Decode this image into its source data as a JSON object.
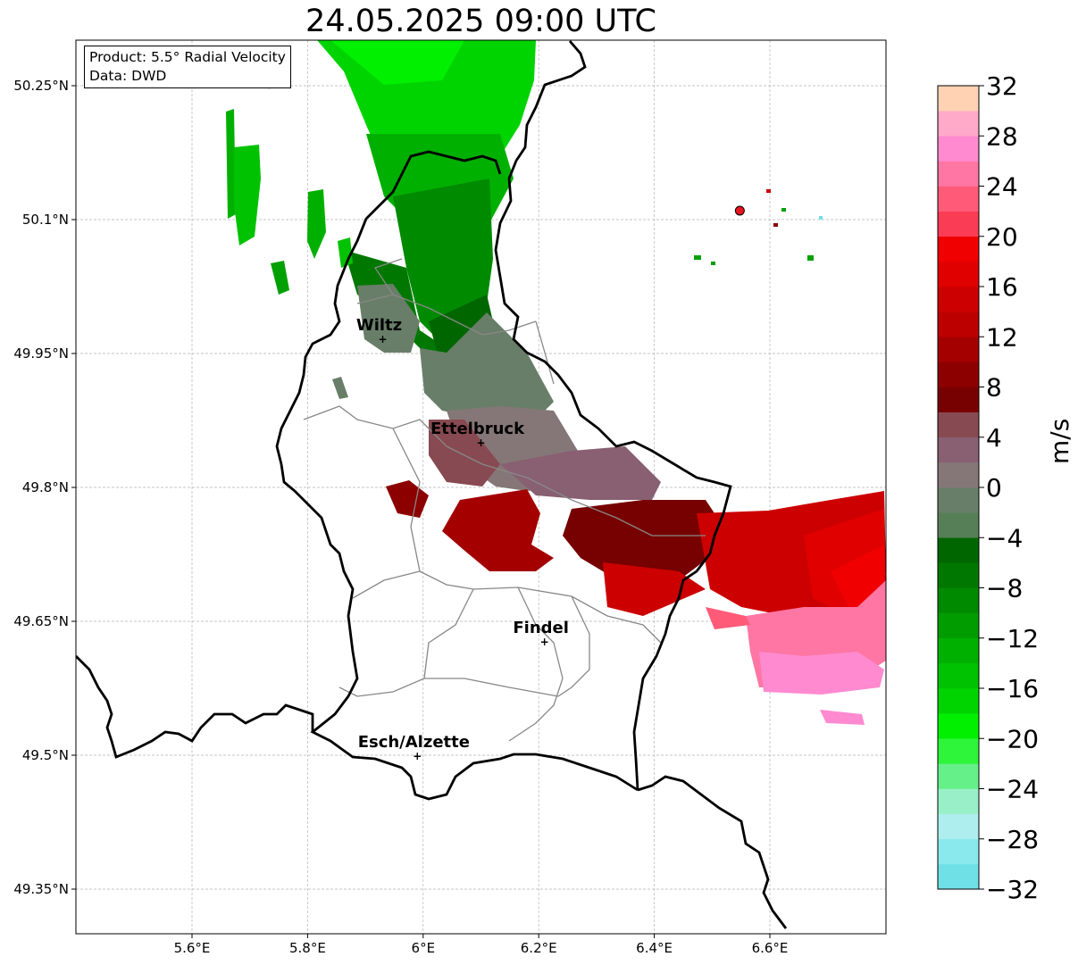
{
  "title": "24.05.2025 09:00 UTC",
  "info": {
    "product": "Product: 5.5° Radial Velocity",
    "data": "Data: DWD"
  },
  "map": {
    "lon_range": [
      5.4,
      6.8
    ],
    "lat_range": [
      49.3,
      50.3
    ],
    "x_ticks": [
      {
        "value": 5.6,
        "label": "5.6°E"
      },
      {
        "value": 5.8,
        "label": "5.8°E"
      },
      {
        "value": 6.0,
        "label": "6°E"
      },
      {
        "value": 6.2,
        "label": "6.2°E"
      },
      {
        "value": 6.4,
        "label": "6.4°E"
      },
      {
        "value": 6.6,
        "label": "6.6°E"
      }
    ],
    "y_ticks": [
      {
        "value": 50.25,
        "label": "50.25°N"
      },
      {
        "value": 50.1,
        "label": "50.1°N"
      },
      {
        "value": 49.95,
        "label": "49.95°N"
      },
      {
        "value": 49.8,
        "label": "49.8°N"
      },
      {
        "value": 49.65,
        "label": "49.65°N"
      },
      {
        "value": 49.5,
        "label": "49.5°N"
      },
      {
        "value": 49.35,
        "label": "49.35°N"
      }
    ],
    "cities": [
      {
        "name": "Wiltz",
        "lon": 5.93,
        "lat": 49.966
      },
      {
        "name": "Ettelbruck",
        "lon": 6.1,
        "lat": 49.85
      },
      {
        "name": "Findel",
        "lon": 6.21,
        "lat": 49.627
      },
      {
        "name": "Esch/Alzette",
        "lon": 5.99,
        "lat": 49.499
      }
    ],
    "radar_site": {
      "lon": 6.548,
      "lat": 50.11,
      "color": "#e8141e"
    }
  },
  "colorbar": {
    "unit": "m/s",
    "min": -32,
    "max": 32,
    "ticks": [
      {
        "value": 32,
        "label": "32"
      },
      {
        "value": 28,
        "label": "28"
      },
      {
        "value": 24,
        "label": "24"
      },
      {
        "value": 20,
        "label": "20"
      },
      {
        "value": 16,
        "label": "16"
      },
      {
        "value": 12,
        "label": "12"
      },
      {
        "value": 8,
        "label": "8"
      },
      {
        "value": 4,
        "label": "4"
      },
      {
        "value": 0,
        "label": "0"
      },
      {
        "value": -4,
        "label": "−4"
      },
      {
        "value": -8,
        "label": "−8"
      },
      {
        "value": -12,
        "label": "−12"
      },
      {
        "value": -16,
        "label": "−16"
      },
      {
        "value": -20,
        "label": "−20"
      },
      {
        "value": -24,
        "label": "−24"
      },
      {
        "value": -28,
        "label": "−28"
      },
      {
        "value": -32,
        "label": "−32"
      }
    ],
    "colors": [
      "#6fe0e6",
      "#8ae9ec",
      "#aeeeee",
      "#99f0c8",
      "#66f08a",
      "#2ef53a",
      "#00f000",
      "#00d400",
      "#00c200",
      "#00b000",
      "#009c00",
      "#008a00",
      "#007800",
      "#006600",
      "#577f57",
      "#687e68",
      "#857777",
      "#886072",
      "#884a52",
      "#770000",
      "#8c0000",
      "#a40000",
      "#bc0000",
      "#cc0000",
      "#e00000",
      "#f00000",
      "#fa3c55",
      "#ff5a78",
      "#ff76a4",
      "#ff8ad0",
      "#ffaac8",
      "#ffd2b4"
    ]
  }
}
